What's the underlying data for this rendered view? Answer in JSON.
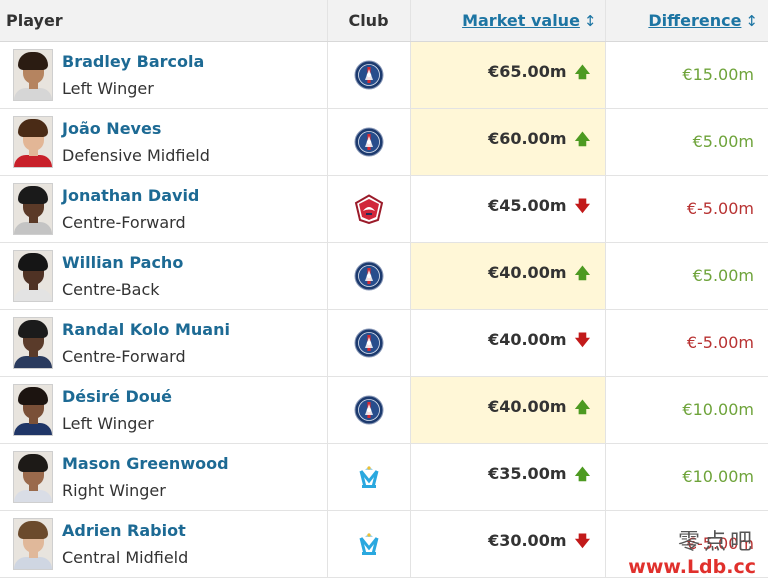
{
  "header": {
    "player": "Player",
    "club": "Club",
    "market_value": "Market value",
    "difference": "Difference",
    "sort_glyph": "↕"
  },
  "rows": [
    {
      "name": "Bradley Barcola",
      "position": "Left Winger",
      "club_icon": "psg-crest-icon",
      "value": "€65.00m",
      "trend": "up",
      "trend_glyph": "🡅",
      "difference": "€15.00m",
      "diff_sign": "positive",
      "highlight": true,
      "skin": "#b58460",
      "hair": "#2b1c12",
      "shirt": "#d6d6d6"
    },
    {
      "name": "João Neves",
      "position": "Defensive Midfield",
      "club_icon": "psg-crest-icon",
      "value": "€60.00m",
      "trend": "up",
      "trend_glyph": "🡅",
      "difference": "€5.00m",
      "diff_sign": "positive",
      "highlight": true,
      "skin": "#e2b696",
      "hair": "#4a2b16",
      "shirt": "#c8202a"
    },
    {
      "name": "Jonathan David",
      "position": "Centre-Forward",
      "club_icon": "lille-crest-icon",
      "value": "€45.00m",
      "trend": "down",
      "trend_glyph": "🡇",
      "difference": "€-5.00m",
      "diff_sign": "negative",
      "highlight": false,
      "skin": "#5b3a28",
      "hair": "#1a1a1a",
      "shirt": "#c4c4c4"
    },
    {
      "name": "Willian Pacho",
      "position": "Centre-Back",
      "club_icon": "psg-crest-icon",
      "value": "€40.00m",
      "trend": "up",
      "trend_glyph": "🡅",
      "difference": "€5.00m",
      "diff_sign": "positive",
      "highlight": true,
      "skin": "#4f3224",
      "hair": "#151515",
      "shirt": "#e3e3e3"
    },
    {
      "name": "Randal Kolo Muani",
      "position": "Centre-Forward",
      "club_icon": "psg-crest-icon",
      "value": "€40.00m",
      "trend": "down",
      "trend_glyph": "🡇",
      "difference": "€-5.00m",
      "diff_sign": "negative",
      "highlight": false,
      "skin": "#5a3b2a",
      "hair": "#1b1b1b",
      "shirt": "#2a3b5e"
    },
    {
      "name": "Désiré Doué",
      "position": "Left Winger",
      "club_icon": "psg-crest-icon",
      "value": "€40.00m",
      "trend": "up",
      "trend_glyph": "🡅",
      "difference": "€10.00m",
      "diff_sign": "positive",
      "highlight": true,
      "skin": "#7a5038",
      "hair": "#1c1410",
      "shirt": "#1f3566"
    },
    {
      "name": "Mason Greenwood",
      "position": "Right Winger",
      "club_icon": "marseille-crest-icon",
      "value": "€35.00m",
      "trend": "up",
      "trend_glyph": "🡅",
      "difference": "€10.00m",
      "diff_sign": "positive",
      "highlight": false,
      "skin": "#9a6a4c",
      "hair": "#1d1a17",
      "shirt": "#d9dde6"
    },
    {
      "name": "Adrien Rabiot",
      "position": "Central Midfield",
      "club_icon": "marseille-crest-icon",
      "value": "€30.00m",
      "trend": "down",
      "trend_glyph": "🡇",
      "difference": "€-5.00m",
      "diff_sign": "negative",
      "highlight": false,
      "skin": "#e0b89a",
      "hair": "#6b4a2c",
      "shirt": "#cfd6e2"
    }
  ],
  "colors": {
    "link": "#1d75a3",
    "highlight": "#fff7d7",
    "positive": "#6ea33a",
    "negative": "#b83232"
  },
  "watermark": {
    "cn": "零点吧",
    "url": "www.Ldb.cc"
  }
}
